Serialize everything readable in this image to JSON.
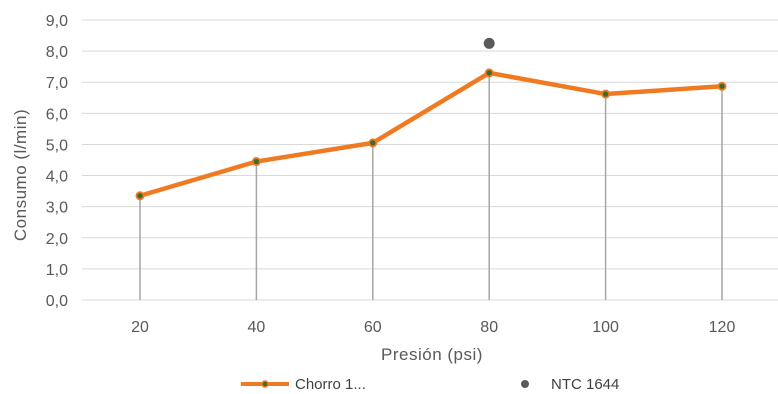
{
  "chart_data": {
    "type": "line",
    "title": "",
    "xlabel": "Presión (psi)",
    "ylabel": "Consumo (l/min)",
    "x": [
      20,
      40,
      60,
      80,
      100,
      120
    ],
    "x_tick_labels": [
      "20",
      "40",
      "60",
      "80",
      "100",
      "120"
    ],
    "y_tick_labels": [
      "0,0",
      "1,0",
      "2,0",
      "3,0",
      "4,0",
      "5,0",
      "6,0",
      "7,0",
      "8,0",
      "9,0"
    ],
    "ylim": [
      0,
      9
    ],
    "grid": "horizontal",
    "legend_position": "bottom",
    "drop_lines": true,
    "series": [
      {
        "name": "Chorro 1...",
        "kind": "line",
        "color": "#F07A22",
        "marker_color": "#3E6B2A",
        "x": [
          20,
          40,
          60,
          80,
          100,
          120
        ],
        "values": [
          3.35,
          4.45,
          5.05,
          7.3,
          6.62,
          6.87
        ]
      },
      {
        "name": "NTC 1644",
        "kind": "scatter",
        "color": "#5A5A5A",
        "x": [
          80
        ],
        "values": [
          8.25
        ]
      }
    ]
  }
}
